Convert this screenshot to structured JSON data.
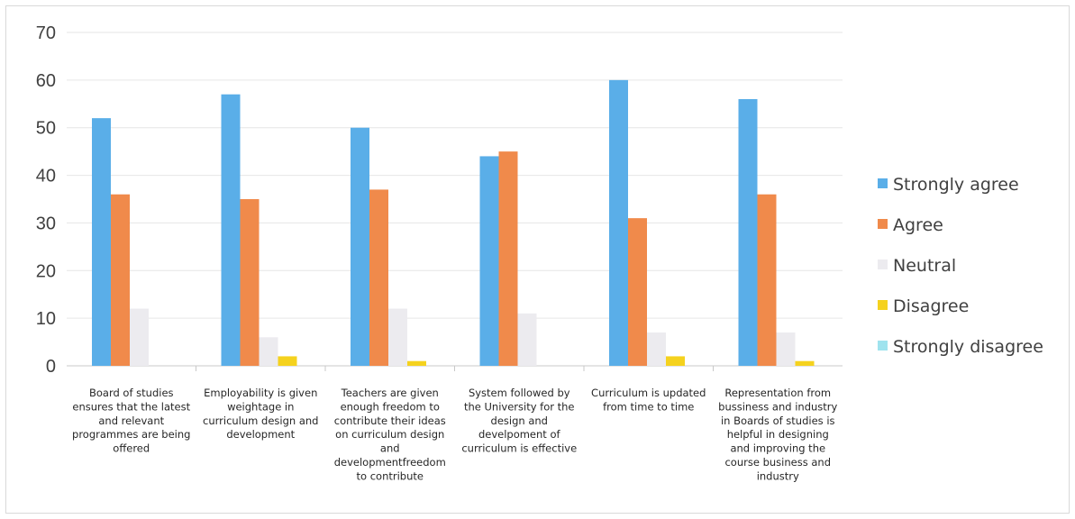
{
  "chart_data": {
    "type": "bar",
    "title": "",
    "xlabel": "",
    "ylabel": "",
    "ylim": [
      0,
      70
    ],
    "yticks": [
      0,
      10,
      20,
      30,
      40,
      50,
      60,
      70
    ],
    "grid": true,
    "legend_position": "right",
    "categories": [
      [
        "Board of studies",
        "ensures that the latest",
        "and relevant",
        "programmes are being",
        "offered"
      ],
      [
        "Employability is given",
        "weightage in",
        "curriculum design and",
        "development"
      ],
      [
        "Teachers are given",
        "enough freedom to",
        "contribute their ideas",
        "on curriculum design",
        "and",
        "developmentfreedom",
        "to contribute"
      ],
      [
        "System followed by",
        "the University for the",
        "design and",
        "develpoment of",
        "curriculum is effective"
      ],
      [
        "Curriculum is updated",
        "from time to time"
      ],
      [
        "Representation  from",
        "bussiness and industry",
        "in Boards of studies is",
        "helpful in designing",
        "and improving the",
        "course business and",
        "industry"
      ]
    ],
    "series": [
      {
        "name": "Strongly agree",
        "color": "#5aaee8",
        "values": [
          52,
          57,
          50,
          44,
          60,
          56
        ]
      },
      {
        "name": "Agree",
        "color": "#f08a4b",
        "values": [
          36,
          35,
          37,
          45,
          31,
          36
        ]
      },
      {
        "name": "Neutral",
        "color": "#ecebef",
        "values": [
          12,
          6,
          12,
          11,
          7,
          7
        ]
      },
      {
        "name": "Disagree",
        "color": "#f5d21e",
        "values": [
          0,
          2,
          1,
          0,
          2,
          1
        ]
      },
      {
        "name": "Strongly disagree",
        "color": "#9fe3ee",
        "values": [
          0,
          0,
          0,
          0,
          0,
          0
        ]
      }
    ]
  }
}
